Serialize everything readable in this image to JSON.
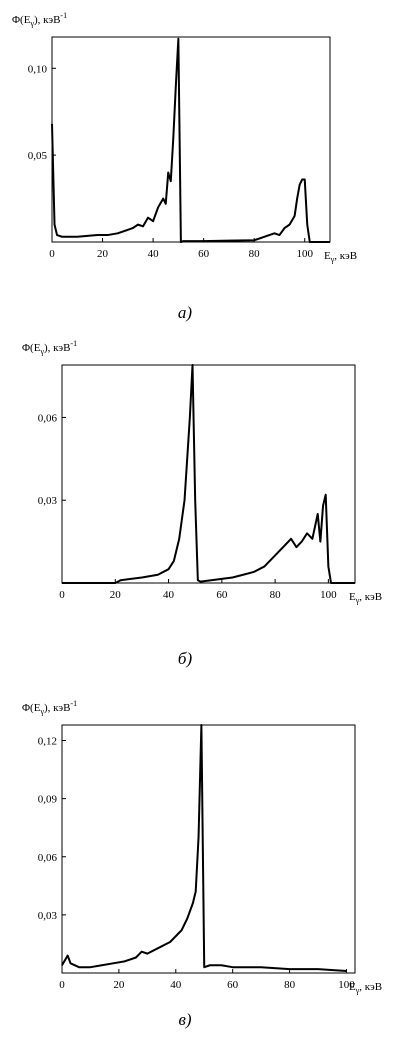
{
  "chart_data": [
    {
      "type": "line",
      "caption": "а)",
      "y_label": {
        "main": "Φ(E",
        "sub": "γ",
        "rest": "),  кэВ",
        "sup": "-1"
      },
      "x_label": {
        "main": "E",
        "sub": "γ",
        "rest": ", кэВ"
      },
      "color": "#000000",
      "x": [
        0,
        1,
        2,
        4,
        6,
        10,
        14,
        18,
        22,
        26,
        30,
        32,
        34,
        36,
        38,
        40,
        42,
        44,
        45,
        46,
        47,
        48,
        49,
        50,
        51,
        52,
        60,
        70,
        80,
        84,
        88,
        90,
        92,
        94,
        96,
        97,
        98,
        99,
        100,
        101,
        102,
        110
      ],
      "values": [
        0.068,
        0.01,
        0.004,
        0.003,
        0.003,
        0.003,
        0.0035,
        0.004,
        0.004,
        0.005,
        0.007,
        0.008,
        0.01,
        0.009,
        0.014,
        0.012,
        0.02,
        0.025,
        0.022,
        0.04,
        0.035,
        0.06,
        0.09,
        0.117,
        0.0,
        0.0005,
        0.0005,
        0.0008,
        0.001,
        0.003,
        0.005,
        0.004,
        0.008,
        0.01,
        0.015,
        0.025,
        0.033,
        0.036,
        0.036,
        0.01,
        0.0,
        0.0
      ],
      "xlim": [
        0,
        110
      ],
      "xticks": [
        0,
        20,
        40,
        60,
        80,
        100
      ],
      "ylim": [
        0,
        0.118
      ],
      "yticks": [
        {
          "value": 0.05,
          "label": "0,05"
        },
        {
          "value": 0.1,
          "label": "0,10"
        }
      ]
    },
    {
      "type": "line",
      "caption": "б)",
      "y_label": {
        "main": "Φ(E",
        "sub": "γ",
        "rest": "),  кэВ",
        "sup": "-1"
      },
      "x_label": {
        "main": "E",
        "sub": "γ",
        "rest": ", кэВ"
      },
      "color": "#000000",
      "x": [
        0,
        20,
        22,
        30,
        36,
        40,
        42,
        44,
        46,
        47,
        48,
        49,
        50,
        51,
        52,
        56,
        60,
        64,
        68,
        72,
        76,
        80,
        84,
        86,
        88,
        90,
        92,
        94,
        96,
        97,
        98,
        99,
        100,
        101,
        110
      ],
      "values": [
        0.0,
        0.0,
        0.001,
        0.002,
        0.003,
        0.005,
        0.008,
        0.016,
        0.03,
        0.045,
        0.06,
        0.079,
        0.03,
        0.001,
        0.0005,
        0.001,
        0.0015,
        0.002,
        0.003,
        0.004,
        0.006,
        0.01,
        0.014,
        0.016,
        0.013,
        0.015,
        0.018,
        0.016,
        0.025,
        0.015,
        0.028,
        0.032,
        0.006,
        0.0,
        0.0
      ],
      "xlim": [
        0,
        110
      ],
      "xticks": [
        0,
        20,
        40,
        60,
        80,
        100
      ],
      "ylim": [
        0,
        0.079
      ],
      "yticks": [
        {
          "value": 0.03,
          "label": "0,03"
        },
        {
          "value": 0.06,
          "label": "0,06"
        }
      ]
    },
    {
      "type": "line",
      "caption": "в)",
      "y_label": {
        "main": "Φ(E",
        "sub": "γ",
        "rest": "),  кэВ",
        "sup": "-1"
      },
      "x_label": {
        "main": "E",
        "sub": "γ",
        "rest": ", кэВ"
      },
      "color": "#000000",
      "x": [
        0,
        2,
        3,
        6,
        10,
        14,
        18,
        22,
        26,
        28,
        30,
        34,
        38,
        42,
        44,
        46,
        47,
        48,
        49,
        50,
        52,
        56,
        60,
        70,
        80,
        90,
        100
      ],
      "values": [
        0.004,
        0.009,
        0.005,
        0.003,
        0.003,
        0.004,
        0.005,
        0.006,
        0.008,
        0.011,
        0.01,
        0.013,
        0.016,
        0.022,
        0.028,
        0.036,
        0.042,
        0.07,
        0.128,
        0.003,
        0.004,
        0.004,
        0.003,
        0.003,
        0.002,
        0.002,
        0.001
      ],
      "xlim": [
        0,
        103
      ],
      "xticks": [
        0,
        20,
        40,
        60,
        80,
        100
      ],
      "ylim": [
        0,
        0.128
      ],
      "yticks": [
        {
          "value": 0.03,
          "label": "0,03"
        },
        {
          "value": 0.06,
          "label": "0,06"
        },
        {
          "value": 0.09,
          "label": "0,09"
        },
        {
          "value": 0.12,
          "label": "0,12"
        }
      ]
    }
  ]
}
